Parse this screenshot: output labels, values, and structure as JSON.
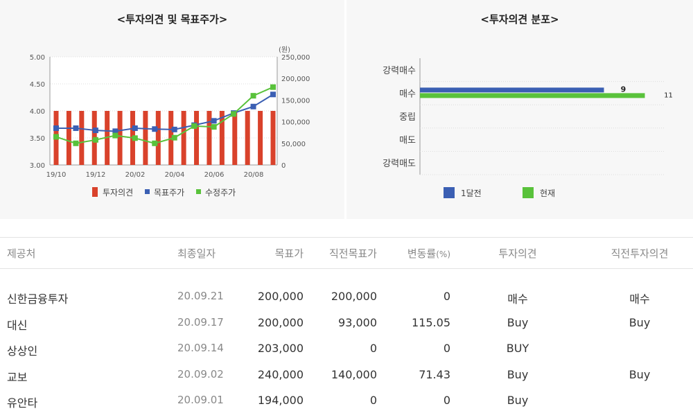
{
  "left_panel": {
    "title": "<투자의견 및 목표주가>",
    "right_axis_unit": "(원)",
    "legend": [
      "투자의견",
      "목표주가",
      "수정주가"
    ]
  },
  "right_panel": {
    "title": "<투자의견 분포>",
    "legend": [
      "1달전",
      "현재"
    ]
  },
  "colors": {
    "opinion_bar": "#d9422b",
    "target_price": "#3b5fb3",
    "adjusted_price": "#59c23b",
    "month_ago": "#3b5fb3",
    "current": "#59c23b"
  },
  "chart_data": [
    {
      "type": "bar+line",
      "title": "<투자의견 및 목표주가>",
      "x_tick_labels": [
        "19/10",
        "19/12",
        "20/02",
        "20/04",
        "20/06",
        "20/08"
      ],
      "left_axis": {
        "ticks": [
          "3.00",
          "3.50",
          "4.00",
          "4.50",
          "5.00"
        ],
        "range": [
          3.0,
          5.0
        ]
      },
      "right_axis": {
        "unit": "(원)",
        "ticks": [
          "0",
          "50,000",
          "100,000",
          "150,000",
          "200,000",
          "250,000"
        ],
        "range": [
          0,
          250000
        ]
      },
      "series": [
        {
          "name": "투자의견",
          "kind": "bar",
          "values": [
            4,
            4,
            4,
            4,
            4,
            4,
            4,
            4,
            4,
            4,
            4,
            4,
            4,
            4,
            4,
            4,
            4,
            4
          ]
        },
        {
          "name": "목표주가",
          "kind": "line",
          "values": [
            85000,
            85000,
            80000,
            78000,
            85000,
            83000,
            82000,
            92000,
            102000,
            120000,
            135000,
            163000
          ]
        },
        {
          "name": "수정주가",
          "kind": "line",
          "values": [
            65000,
            50000,
            58000,
            68000,
            62000,
            50000,
            63000,
            90000,
            88000,
            118000,
            160000,
            180000
          ]
        }
      ],
      "grid": true,
      "legend_position": "bottom"
    },
    {
      "type": "bar",
      "orientation": "horizontal",
      "title": "<투자의견 분포>",
      "categories": [
        "강력매수",
        "매수",
        "중립",
        "매도",
        "강력매도"
      ],
      "series": [
        {
          "name": "1달전",
          "values": [
            0,
            9,
            0,
            0,
            0
          ]
        },
        {
          "name": "현재",
          "values": [
            0,
            11,
            0,
            0,
            0
          ]
        }
      ],
      "value_labels": {
        "1달전": "9",
        "현재": "11"
      },
      "legend_position": "bottom"
    }
  ],
  "table": {
    "headers": {
      "provider": "제공처",
      "date": "최종일자",
      "target": "목표가",
      "prev_target": "직전목표가",
      "change": "변동률",
      "change_unit": "(%)",
      "opinion": "투자의견",
      "prev_opinion": "직전투자의견"
    },
    "rows": [
      {
        "provider": "신한금융투자",
        "date": "20.09.21",
        "target": "200,000",
        "prev_target": "200,000",
        "change": "0",
        "opinion": "매수",
        "prev_opinion": "매수"
      },
      {
        "provider": "대신",
        "date": "20.09.17",
        "target": "200,000",
        "prev_target": "93,000",
        "change": "115.05",
        "opinion": "Buy",
        "prev_opinion": "Buy"
      },
      {
        "provider": "상상인",
        "date": "20.09.14",
        "target": "203,000",
        "prev_target": "0",
        "change": "0",
        "opinion": "BUY",
        "prev_opinion": ""
      },
      {
        "provider": "교보",
        "date": "20.09.02",
        "target": "240,000",
        "prev_target": "140,000",
        "change": "71.43",
        "opinion": "Buy",
        "prev_opinion": "Buy"
      },
      {
        "provider": "유안타",
        "date": "20.09.01",
        "target": "194,000",
        "prev_target": "0",
        "change": "0",
        "opinion": "Buy",
        "prev_opinion": ""
      }
    ]
  }
}
